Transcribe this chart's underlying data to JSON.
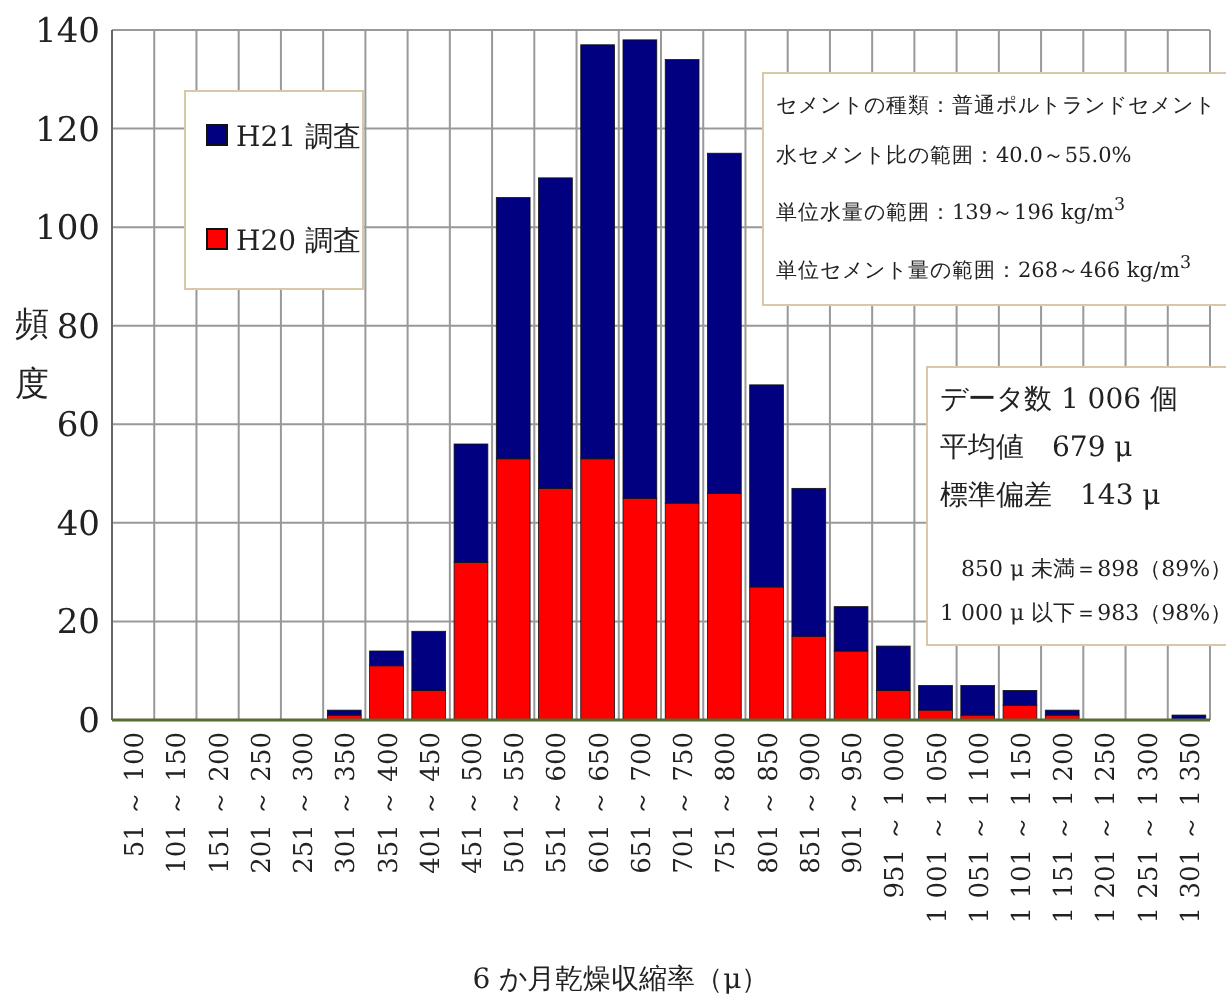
{
  "chart_data": {
    "type": "bar",
    "stacked": true,
    "categories": [
      "51 ～ 100",
      "101 ～ 150",
      "151 ～ 200",
      "201 ～ 250",
      "251 ～ 300",
      "301 ～ 350",
      "351 ～ 400",
      "401 ～ 450",
      "451 ～ 500",
      "501 ～ 550",
      "551 ～ 600",
      "601 ～ 650",
      "651 ～ 700",
      "701 ～ 750",
      "751 ～ 800",
      "801 ～ 850",
      "851 ～ 900",
      "901 ～ 950",
      "951 ～ 1 000",
      "1 001 ～ 1 050",
      "1 051 ～ 1 100",
      "1 101 ～ 1 150",
      "1 151 ～ 1 200",
      "1 201 ～ 1 250",
      "1 251 ～ 1 300",
      "1 301 ～ 1 350"
    ],
    "series": [
      {
        "name": "H20 調査",
        "color": "#ff0000",
        "values": [
          0,
          0,
          0,
          0,
          0,
          1,
          11,
          6,
          32,
          53,
          47,
          53,
          45,
          44,
          46,
          27,
          17,
          14,
          6,
          2,
          1,
          3,
          1,
          0,
          0,
          0
        ]
      },
      {
        "name": "H21 調査",
        "color": "#000080",
        "values": [
          0,
          0,
          0,
          0,
          0,
          1,
          3,
          12,
          24,
          53,
          63,
          84,
          93,
          90,
          69,
          41,
          30,
          9,
          9,
          5,
          6,
          3,
          1,
          0,
          0,
          1
        ]
      }
    ],
    "ylim": [
      0,
      140
    ],
    "yticks": [
      0,
      20,
      40,
      60,
      80,
      100,
      120,
      140
    ],
    "grid": true,
    "legend": "top left",
    "xlabel": "6 か月乾燥収縮率（μ）",
    "ylabel": "頻度",
    "annotations": [
      "セメントの種類：普通ポルトランドセメント",
      "水セメント比の範囲：40.0～55.0%",
      "単位水量の範囲：139～196 kg/m$^{3}$",
      "単位セメント量の範囲：268～466 kg/m$^{3}$",
      "データ数 1 006 個",
      "平均値　679 μ",
      "標準偏差　143 μ",
      "850 μ 未満＝898（89%）",
      "1 000 μ 以下＝983（98%）"
    ]
  }
}
